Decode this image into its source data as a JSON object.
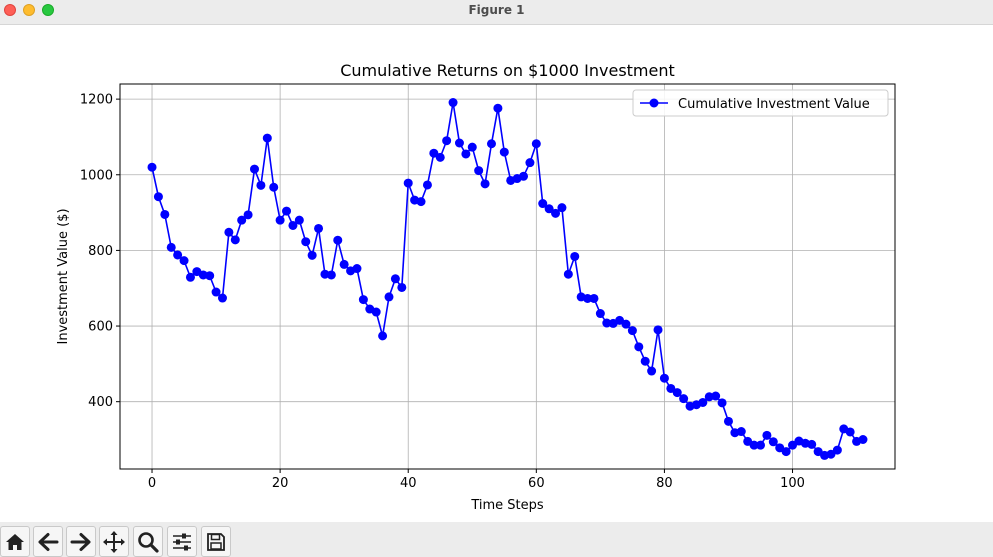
{
  "window": {
    "title": "Figure 1"
  },
  "toolbar": {
    "icons": [
      "home-icon",
      "back-arrow-icon",
      "forward-arrow-icon",
      "pan-icon",
      "zoom-icon",
      "configure-subplots-icon",
      "save-icon"
    ]
  },
  "chart_data": {
    "type": "line",
    "title": "Cumulative Returns on $1000 Investment",
    "xlabel": "Time Steps",
    "ylabel": "Investment Value ($)",
    "xlim": [
      -5,
      116
    ],
    "ylim": [
      222,
      1240
    ],
    "xticks": [
      0,
      20,
      40,
      60,
      80,
      100
    ],
    "yticks": [
      400,
      600,
      800,
      1000,
      1200
    ],
    "grid": true,
    "legend_position": "upper right",
    "series": [
      {
        "name": "Cumulative Investment Value",
        "color": "#0000ff",
        "marker": "circle",
        "x": [
          0,
          1,
          2,
          3,
          4,
          5,
          6,
          7,
          8,
          9,
          10,
          11,
          12,
          13,
          14,
          15,
          16,
          17,
          18,
          19,
          20,
          21,
          22,
          23,
          24,
          25,
          26,
          27,
          28,
          29,
          30,
          31,
          32,
          33,
          34,
          35,
          36,
          37,
          38,
          39,
          40,
          41,
          42,
          43,
          44,
          45,
          46,
          47,
          48,
          49,
          50,
          51,
          52,
          53,
          54,
          55,
          56,
          57,
          58,
          59,
          60,
          61,
          62,
          63,
          64,
          65,
          66,
          67,
          68,
          69,
          70,
          71,
          72,
          73,
          74,
          75,
          76,
          77,
          78,
          79,
          80,
          81,
          82,
          83,
          84,
          85,
          86,
          87,
          88,
          89,
          90,
          91,
          92,
          93,
          94,
          95,
          96,
          97,
          98,
          99,
          100,
          101,
          102,
          103,
          104,
          105,
          106,
          107,
          108,
          109,
          110,
          111
        ],
        "y": [
          1020,
          942,
          895,
          808,
          788,
          773,
          729,
          744,
          735,
          733,
          690,
          674,
          848,
          828,
          880,
          894,
          1015,
          972,
          1097,
          967,
          880,
          904,
          866,
          880,
          823,
          787,
          858,
          737,
          735,
          827,
          763,
          746,
          752,
          670,
          645,
          637,
          574,
          677,
          725,
          702,
          978,
          933,
          929,
          973,
          1057,
          1046,
          1090,
          1191,
          1084,
          1055,
          1073,
          1011,
          976,
          1082,
          1176,
          1060,
          985,
          990,
          996,
          1032,
          1082,
          924,
          910,
          898,
          913,
          737,
          784,
          677,
          673,
          673,
          633,
          608,
          607,
          615,
          605,
          588,
          545,
          507,
          481,
          590,
          462,
          435,
          424,
          408,
          388,
          392,
          398,
          413,
          415,
          397,
          348,
          318,
          321,
          295,
          285,
          285,
          311,
          294,
          278,
          268,
          285,
          296,
          290,
          287,
          268,
          258,
          261,
          272,
          328,
          320,
          295,
          300
        ]
      }
    ]
  }
}
